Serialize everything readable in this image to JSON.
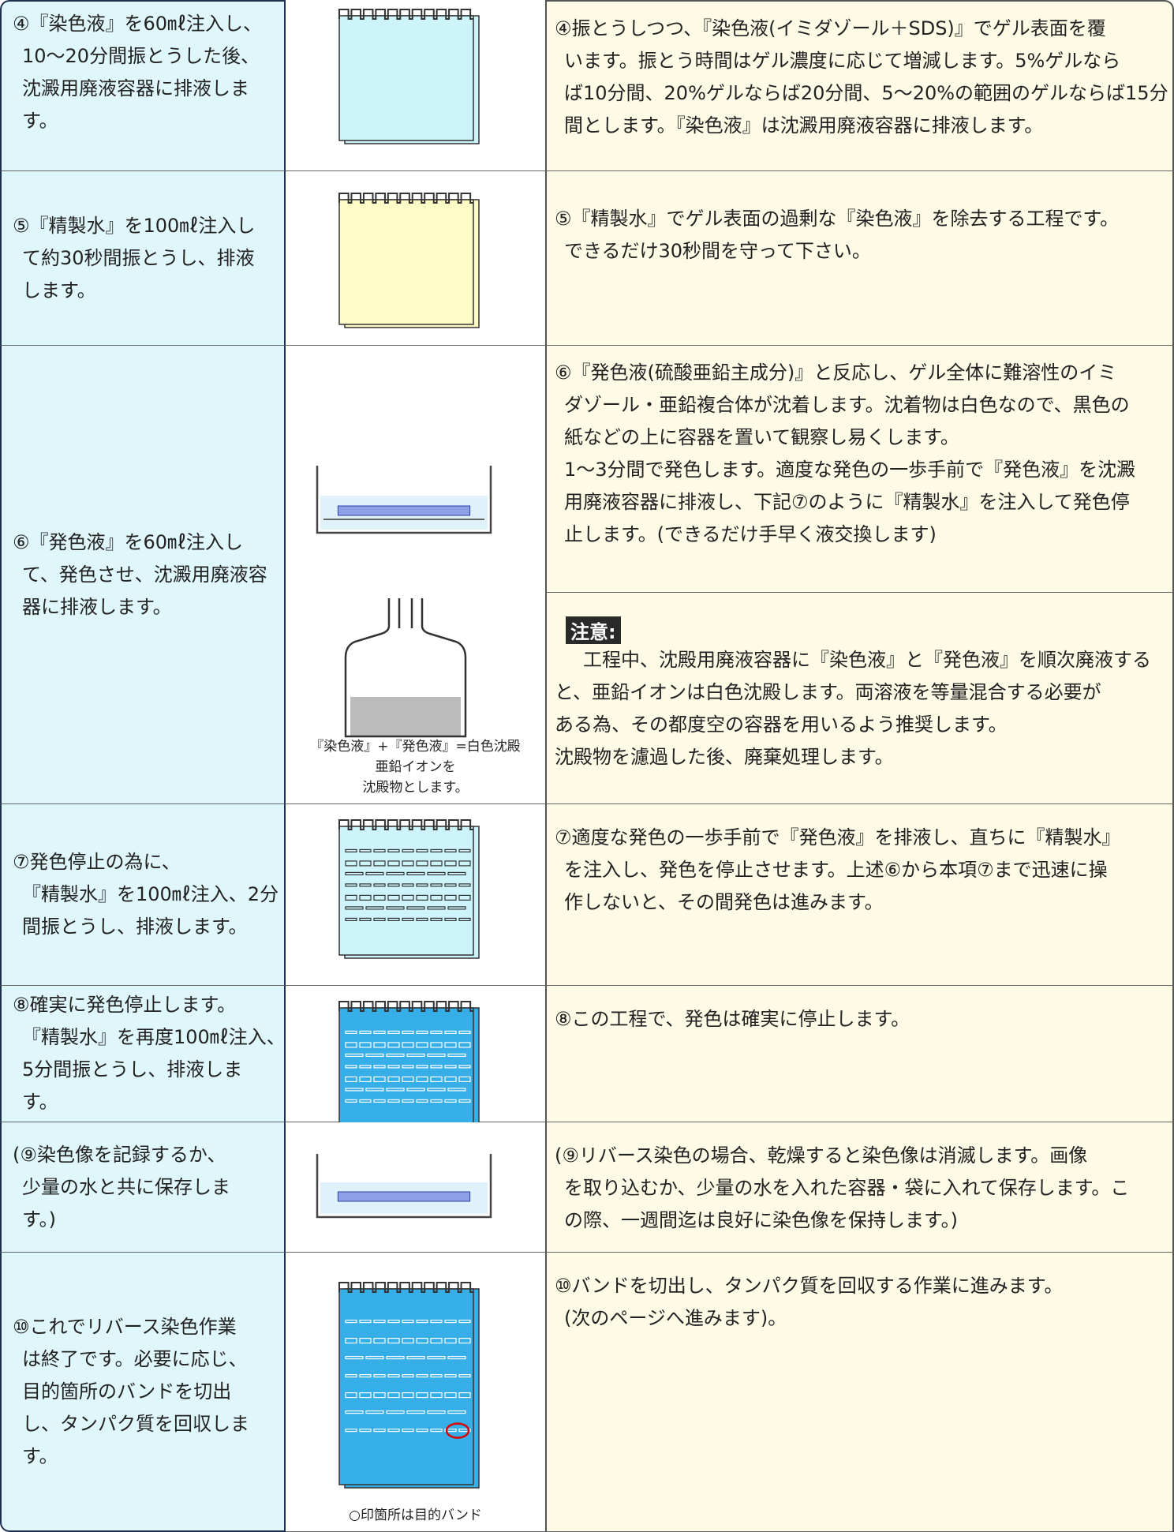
{
  "rows": [
    {
      "step": [
        "④『染色液』を60㎖注入し、",
        "10〜20分間振とうした後、",
        "沈澱用廃液容器に排液しま",
        "す。"
      ],
      "explanation": [
        "④振とうしつつ、『染色液(イミダゾール＋SDS)』でゲル表面を覆",
        "います。振とう時間はゲル濃度に応じて増減します。5%ゲルなら",
        "ば10分間、20%ゲルならば20分間、5〜20%の範囲のゲルならば15分",
        "間とします。『染色液』は沈澱用廃液容器に排液します。"
      ]
    },
    {
      "step": [
        "⑤『精製水』を100㎖注入し",
        "て約30秒間振とうし、排液",
        "します。"
      ],
      "explanation": [
        "⑤『精製水』でゲル表面の過剰な『染色液』を除去する工程です。",
        "できるだけ30秒間を守って下さい。"
      ]
    },
    {
      "step": [
        "⑥『発色液』を60㎖注入し",
        "て、発色させ、沈澱用廃液容",
        "器に排液します。"
      ],
      "explanation": [
        "⑥『発色液(硫酸亜鉛主成分)』と反応し、ゲル全体に難溶性のイミ",
        "ダゾール・亜鉛複合体が沈着します。沈着物は白色なので、黒色の",
        "紙などの上に容器を置いて観察し易くします。",
        "1〜3分間で発色します。適度な発色の一歩手前で『発色液』を沈澱",
        "用廃液容器に排液し、下記⑦のように『精製水』を注入して発色停",
        "止します。(できるだけ手早く液交換します)"
      ],
      "note_title": "注意:",
      "note": [
        "工程中、沈殿用廃液容器に『染色液』と『発色液』を順次廃液する",
        "と、亜鉛イオンは白色沈殿します。両溶液を等量混合する必要が",
        "ある為、その都度空の容器を用いるよう推奨します。",
        "沈殿物を濾過した後、廃棄処理します。"
      ],
      "caption": [
        "『染色液』+『発色液』=白色沈殿",
        "亜鉛イオンを",
        "沈殿物とします。"
      ]
    },
    {
      "step": [
        "⑦発色停止の為に、",
        "『精製水』を100㎖注入、2分",
        "間振とうし、排液します。"
      ],
      "explanation": [
        "⑦適度な発色の一歩手前で『発色液』を排液し、直ちに『精製水』",
        "を注入し、発色を停止させます。上述⑥から本項⑦まで迅速に操",
        "作しないと、その間発色は進みます。"
      ]
    },
    {
      "step": [
        "⑧確実に発色停止します。",
        "『精製水』を再度100㎖注入、",
        "5分間振とうし、排液しま",
        "す。"
      ],
      "explanation": [
        "⑧この工程で、発色は確実に停止します。"
      ]
    },
    {
      "step": [
        "(⑨染色像を記録するか、",
        "少量の水と共に保存しま",
        "す。)"
      ],
      "explanation": [
        "(⑨リバース染色の場合、乾燥すると染色像は消滅します。画像",
        "を取り込むか、少量の水を入れた容器・袋に入れて保存します。こ",
        "の際、一週間迄は良好に染色像を保持します。)"
      ]
    },
    {
      "step": [
        "⑩これでリバース染色作業",
        "は終了です。必要に応じ、",
        "目的箇所のバンドを切出",
        "し、タンパク質を回収しま",
        "す。"
      ],
      "explanation": [
        "⑩バンドを切出し、タンパク質を回収する作業に進みます。",
        "(次のページへ進みます)。"
      ],
      "caption": [
        "○印箇所は目的バンド"
      ]
    }
  ]
}
